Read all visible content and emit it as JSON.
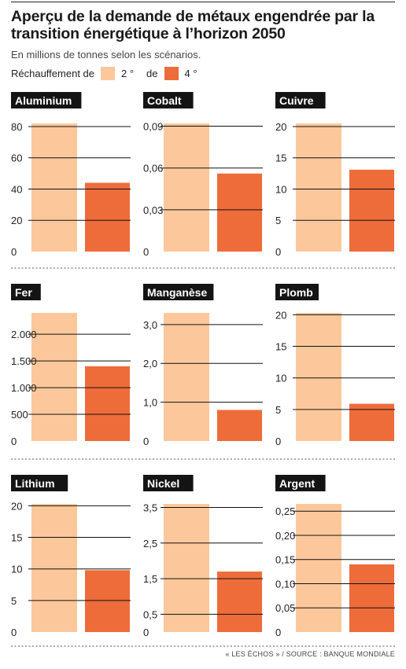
{
  "title": "Aperçu de la demande de métaux engendrée par la transition énergétique à l’horizon 2050",
  "subtitle": "En millions de tonnes selon les scénarios.",
  "legend": {
    "prefix": "Réchauffement de",
    "mid": "de",
    "items": [
      {
        "label": "2 °",
        "color": "#fcc89b"
      },
      {
        "label": "4 °",
        "color": "#ed6c3a"
      }
    ]
  },
  "source": "« LES ÉCHOS » / SOURCE : BANQUE MONDIALE",
  "chart_data": [
    {
      "type": "bar",
      "title": "Aluminium",
      "categories": [
        "2 °",
        "4 °"
      ],
      "values": [
        82,
        44
      ],
      "yticks": [
        0,
        20,
        40,
        60,
        80
      ],
      "ytick_labels": [
        "0",
        "20",
        "40",
        "60",
        "80"
      ],
      "ylim": [
        0,
        82
      ]
    },
    {
      "type": "bar",
      "title": "Cobalt",
      "categories": [
        "2 °",
        "4 °"
      ],
      "values": [
        0.092,
        0.056
      ],
      "yticks": [
        0,
        0.03,
        0.06,
        0.09
      ],
      "ytick_labels": [
        "0",
        "0,03",
        "0,06",
        "0,09"
      ],
      "ylim": [
        0,
        0.092
      ]
    },
    {
      "type": "bar",
      "title": "Cuivre",
      "categories": [
        "2 °",
        "4 °"
      ],
      "values": [
        20.5,
        13.1
      ],
      "yticks": [
        0,
        5,
        10,
        15,
        20
      ],
      "ytick_labels": [
        "0",
        "5",
        "10",
        "15",
        "20"
      ],
      "ylim": [
        0,
        20.5
      ]
    },
    {
      "type": "bar",
      "title": "Fer",
      "categories": [
        "2 °",
        "4 °"
      ],
      "values": [
        2400,
        1400
      ],
      "yticks": [
        0,
        500,
        1000,
        1500,
        2000
      ],
      "ytick_labels": [
        "0",
        "500",
        "1.000",
        "1.500",
        "2.000"
      ],
      "ylim": [
        0,
        2400
      ]
    },
    {
      "type": "bar",
      "title": "Manganèse",
      "categories": [
        "2 °",
        "4 °"
      ],
      "values": [
        3.3,
        0.8
      ],
      "yticks": [
        0,
        1,
        2,
        3
      ],
      "ytick_labels": [
        "0",
        "1,0",
        "2,0",
        "3,0"
      ],
      "ylim": [
        0,
        3.3
      ]
    },
    {
      "type": "bar",
      "title": "Plomb",
      "categories": [
        "2 °",
        "4 °"
      ],
      "values": [
        20.3,
        5.9
      ],
      "yticks": [
        0,
        5,
        10,
        15,
        20
      ],
      "ytick_labels": [
        "0",
        "5",
        "10",
        "15",
        "20"
      ],
      "ylim": [
        0,
        20.3
      ]
    },
    {
      "type": "bar",
      "title": "Lithium",
      "categories": [
        "2 °",
        "4 °"
      ],
      "values": [
        20.3,
        9.8
      ],
      "yticks": [
        0,
        5,
        10,
        15,
        20
      ],
      "ytick_labels": [
        "0",
        "5",
        "10",
        "15",
        "20"
      ],
      "ylim": [
        0,
        20.3
      ]
    },
    {
      "type": "bar",
      "title": "Nickel",
      "categories": [
        "2 °",
        "4 °"
      ],
      "values": [
        3.6,
        1.7
      ],
      "yticks": [
        0,
        0.5,
        1.5,
        2.5,
        3.5
      ],
      "ytick_labels": [
        "0",
        "0,5",
        "1,5",
        "2,5",
        "3,5"
      ],
      "ylim": [
        0,
        3.6
      ]
    },
    {
      "type": "bar",
      "title": "Argent",
      "categories": [
        "2 °",
        "4 °"
      ],
      "values": [
        0.265,
        0.14
      ],
      "yticks": [
        0,
        0.05,
        0.1,
        0.15,
        0.2,
        0.25
      ],
      "ytick_labels": [
        "0",
        "0,05",
        "0,10",
        "0,15",
        "0,20",
        "0,25"
      ],
      "ylim": [
        0,
        0.265
      ]
    }
  ]
}
